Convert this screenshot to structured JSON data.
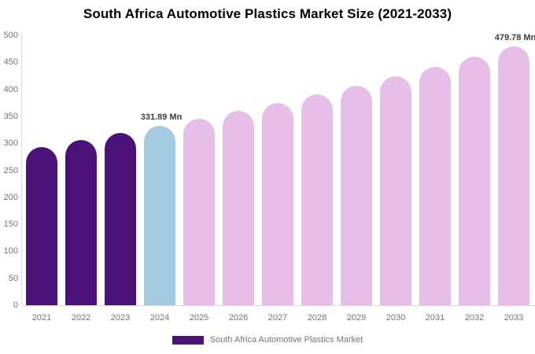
{
  "title": "South Africa Automotive Plastics Market Size (2021-2033)",
  "colors": {
    "historical_bar": "#4B1279",
    "base_year_bar": "#A4CADF",
    "forecast_bar": "#E6BEE8",
    "axis_line": "#D9D9D9",
    "axis_text": "#757575",
    "data_label_text": "#3D3D3D",
    "title_text": "#000000"
  },
  "legend": {
    "label": "South Africa Automotive Plastics Market",
    "swatch_color": "#4B1279"
  },
  "chart_data": {
    "type": "bar",
    "title": "South Africa Automotive Plastics Market Size (2021-2033)",
    "categories": [
      "2021",
      "2022",
      "2023",
      "2024",
      "2025",
      "2026",
      "2027",
      "2028",
      "2029",
      "2030",
      "2031",
      "2032",
      "2033"
    ],
    "values": [
      293.5,
      305.8,
      318.6,
      331.89,
      345.8,
      360.2,
      375.3,
      391.0,
      407.3,
      424.3,
      442.1,
      460.5,
      479.78
    ],
    "bar_colors": [
      "#4B1279",
      "#4B1279",
      "#4B1279",
      "#A4CADF",
      "#E6BEE8",
      "#E6BEE8",
      "#E6BEE8",
      "#E6BEE8",
      "#E6BEE8",
      "#E6BEE8",
      "#E6BEE8",
      "#E6BEE8",
      "#E6BEE8"
    ],
    "data_labels": [
      null,
      null,
      null,
      "331.89 Mn",
      null,
      null,
      null,
      null,
      null,
      null,
      null,
      null,
      "479.78 Mn"
    ],
    "unit": "Mn",
    "xlabel": "",
    "ylabel": "",
    "ylim": [
      0,
      500
    ],
    "yticks": [
      0,
      50,
      100,
      150,
      200,
      250,
      300,
      350,
      400,
      450,
      500
    ],
    "grid": false,
    "legend_position": "bottom",
    "legend_entries": [
      "South Africa Automotive Plastics Market"
    ]
  }
}
